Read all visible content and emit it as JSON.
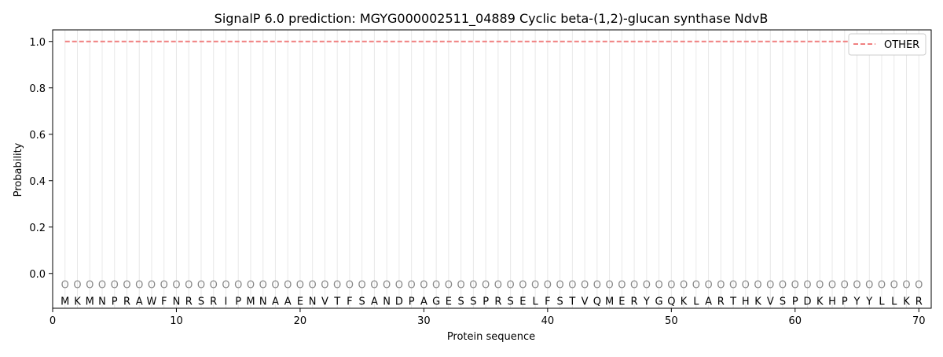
{
  "chart_data": {
    "type": "line",
    "title": "SignalP 6.0 prediction: MGYG000002511_04889 Cyclic beta-(1,2)-glucan synthase NdvB",
    "xlabel": "Protein sequence",
    "ylabel": "Probability",
    "xlim": [
      0,
      71
    ],
    "ylim": [
      -0.15,
      1.05
    ],
    "xticks": [
      0,
      10,
      20,
      30,
      40,
      50,
      60,
      70
    ],
    "yticks": [
      0.0,
      0.2,
      0.4,
      0.6,
      0.8,
      1.0
    ],
    "ytick_labels": [
      "0.0",
      "0.2",
      "0.4",
      "0.6",
      "0.8",
      "1.0"
    ],
    "sequence": [
      "M",
      "K",
      "M",
      "N",
      "P",
      "R",
      "A",
      "W",
      "F",
      "N",
      "R",
      "S",
      "R",
      "I",
      "P",
      "M",
      "N",
      "A",
      "A",
      "E",
      "N",
      "V",
      "T",
      "F",
      "S",
      "A",
      "N",
      "D",
      "P",
      "A",
      "G",
      "E",
      "S",
      "S",
      "P",
      "R",
      "S",
      "E",
      "L",
      "F",
      "S",
      "T",
      "V",
      "Q",
      "M",
      "E",
      "R",
      "Y",
      "G",
      "Q",
      "K",
      "L",
      "A",
      "R",
      "T",
      "H",
      "K",
      "V",
      "S",
      "P",
      "D",
      "K",
      "H",
      "P",
      "Y",
      "Y",
      "L",
      "L",
      "K",
      "R"
    ],
    "region_labels": [
      "O",
      "O",
      "O",
      "O",
      "O",
      "O",
      "O",
      "O",
      "O",
      "O",
      "O",
      "O",
      "O",
      "O",
      "O",
      "O",
      "O",
      "O",
      "O",
      "O",
      "O",
      "O",
      "O",
      "O",
      "O",
      "O",
      "O",
      "O",
      "O",
      "O",
      "O",
      "O",
      "O",
      "O",
      "O",
      "O",
      "O",
      "O",
      "O",
      "O",
      "O",
      "O",
      "O",
      "O",
      "O",
      "O",
      "O",
      "O",
      "O",
      "O",
      "O",
      "O",
      "O",
      "O",
      "O",
      "O",
      "O",
      "O",
      "O",
      "O",
      "O",
      "O",
      "O",
      "O",
      "O",
      "O",
      "O",
      "O",
      "O",
      "O"
    ],
    "series": [
      {
        "name": "OTHER",
        "style": "dashed",
        "color": "#f08080",
        "x": [
          1,
          70
        ],
        "values": [
          1.0,
          1.0
        ]
      }
    ],
    "legend_position": "top-right",
    "grid": "vertical lines at each residue"
  }
}
